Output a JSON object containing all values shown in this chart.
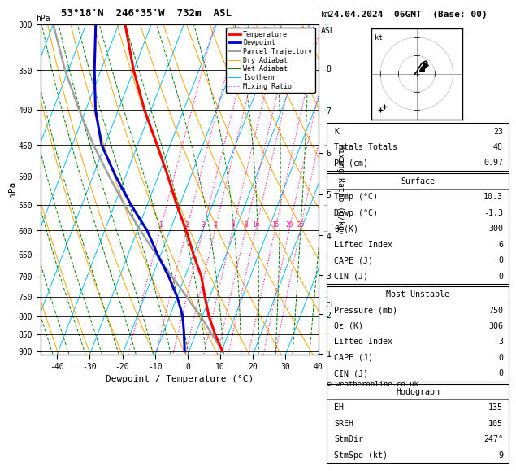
{
  "title_left": "53°18'N  246°35'W  732m  ASL",
  "title_right": "24.04.2024  06GMT  (Base: 00)",
  "xlabel": "Dewpoint / Temperature (°C)",
  "ylabel_left": "hPa",
  "pressure_ticks": [
    300,
    350,
    400,
    450,
    500,
    550,
    600,
    650,
    700,
    750,
    800,
    850,
    900
  ],
  "temp_range": [
    -45,
    40
  ],
  "bg_color": "#ffffff",
  "isotherm_color": "#00bfff",
  "dry_adiabat_color": "#ffa500",
  "wet_adiabat_color": "#008000",
  "mixing_ratio_color": "#ff1493",
  "temp_color": "#ff0000",
  "dewpoint_color": "#0000cd",
  "parcel_color": "#a0a0a0",
  "km_ticks": [
    1,
    2,
    3,
    4,
    5,
    6,
    7,
    8
  ],
  "km_pressures": [
    907,
    795,
    697,
    610,
    531,
    462,
    401,
    347
  ],
  "mixing_ratio_values": [
    1,
    2,
    3,
    4,
    6,
    8,
    10,
    15,
    20,
    25
  ],
  "lcl_pressure": 770,
  "temperature_profile": {
    "pressure": [
      900,
      850,
      800,
      750,
      700,
      650,
      600,
      550,
      500,
      450,
      400,
      350,
      300
    ],
    "temp": [
      10.3,
      6.0,
      2.0,
      -1.5,
      -5.0,
      -10.0,
      -15.0,
      -21.0,
      -27.0,
      -34.0,
      -42.0,
      -50.0,
      -58.0
    ]
  },
  "dewpoint_profile": {
    "pressure": [
      900,
      850,
      800,
      750,
      700,
      650,
      600,
      550,
      500,
      450,
      400,
      350,
      300
    ],
    "temp": [
      -1.3,
      -3.5,
      -6.0,
      -10.0,
      -15.0,
      -21.0,
      -27.0,
      -35.0,
      -43.0,
      -51.0,
      -57.0,
      -62.0,
      -67.0
    ]
  },
  "parcel_profile": {
    "pressure": [
      900,
      850,
      800,
      770,
      750,
      700,
      650,
      600,
      550,
      500,
      450,
      400,
      350,
      300
    ],
    "temp": [
      10.3,
      5.0,
      -0.5,
      -4.5,
      -7.0,
      -14.0,
      -21.5,
      -29.0,
      -37.0,
      -45.0,
      -53.5,
      -62.0,
      -71.0,
      -80.0
    ]
  },
  "stats": {
    "K": "23",
    "Totals_Totals": "48",
    "PW_cm": "0.97",
    "Surface_Temp": "10.3",
    "Surface_Dewp": "-1.3",
    "Surface_ThetaE": "300",
    "Surface_LiftedIndex": "6",
    "Surface_CAPE": "0",
    "Surface_CIN": "0",
    "MU_Pressure": "750",
    "MU_ThetaE": "306",
    "MU_LiftedIndex": "3",
    "MU_CAPE": "0",
    "MU_CIN": "0",
    "EH": "135",
    "SREH": "105",
    "StmDir": "247",
    "StmSpd": "9"
  },
  "legend_items": [
    {
      "label": "Temperature",
      "color": "#ff0000",
      "style": "solid",
      "lw": 2.0
    },
    {
      "label": "Dewpoint",
      "color": "#0000cd",
      "style": "solid",
      "lw": 2.0
    },
    {
      "label": "Parcel Trajectory",
      "color": "#a0a0a0",
      "style": "solid",
      "lw": 1.5
    },
    {
      "label": "Dry Adiabat",
      "color": "#ffa500",
      "style": "solid",
      "lw": 0.7
    },
    {
      "label": "Wet Adiabat",
      "color": "#008000",
      "style": "solid",
      "lw": 0.7
    },
    {
      "label": "Isotherm",
      "color": "#00bfff",
      "style": "solid",
      "lw": 0.7
    },
    {
      "label": "Mixing Ratio",
      "color": "#ff1493",
      "style": "dotted",
      "lw": 0.8
    }
  ]
}
